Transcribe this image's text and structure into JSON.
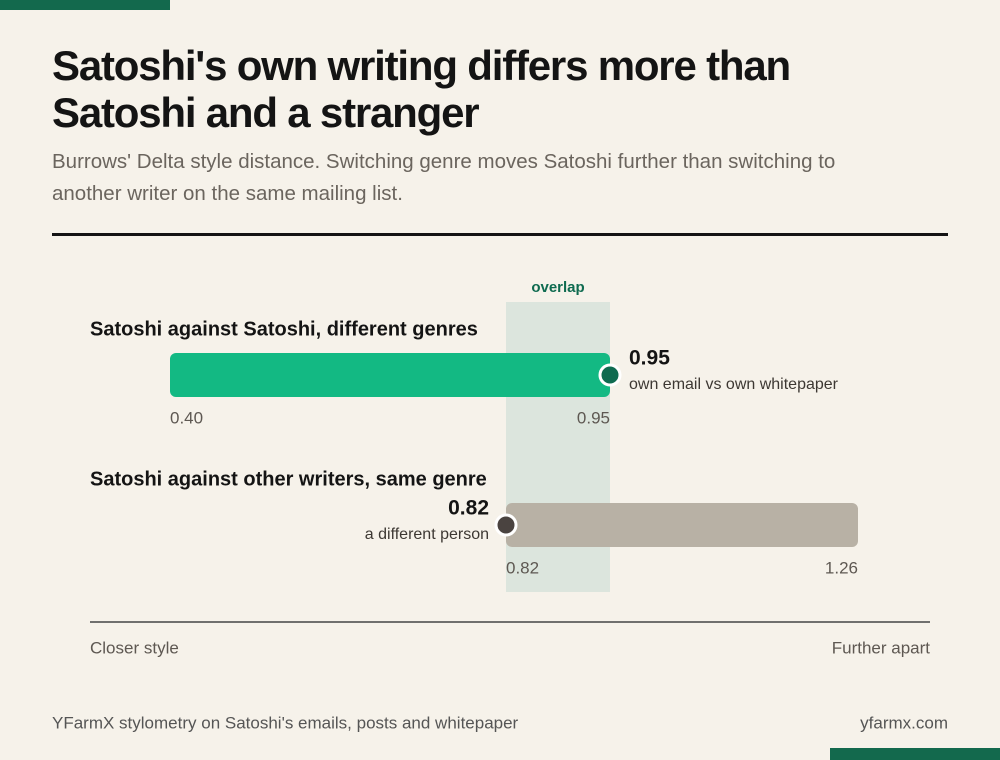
{
  "chart_data": {
    "type": "range",
    "title": "Satoshi's own writing differs more than Satoshi and a stranger",
    "subtitle": "Burrows' Delta style distance. Switching genre moves Satoshi further than switching to another writer on the same mailing list.",
    "xlim": [
      0.3,
      1.35
    ],
    "overlap_label": "overlap",
    "overlap_color": "#dce5dd",
    "series": [
      {
        "name": "Satoshi against Satoshi, different genres",
        "values": [
          0.4,
          0.95
        ],
        "value_labels": [
          "0.40",
          "0.95"
        ],
        "color": "#13b983",
        "marker_color": "#0f6b50",
        "marker": "end",
        "caption": "own email vs own whitepaper"
      },
      {
        "name": "Satoshi against other writers, same genre",
        "values": [
          0.82,
          1.26
        ],
        "value_labels": [
          "0.82",
          "1.26"
        ],
        "color": "#b8b1a5",
        "marker_color": "#4a4340",
        "marker": "start",
        "caption": "a different person"
      }
    ],
    "x_label_left": "Closer style",
    "x_label_right": "Further apart",
    "source": "YFarmX stylometry on Satoshi's emails, posts and whitepaper",
    "site": "yfarmx.com"
  }
}
